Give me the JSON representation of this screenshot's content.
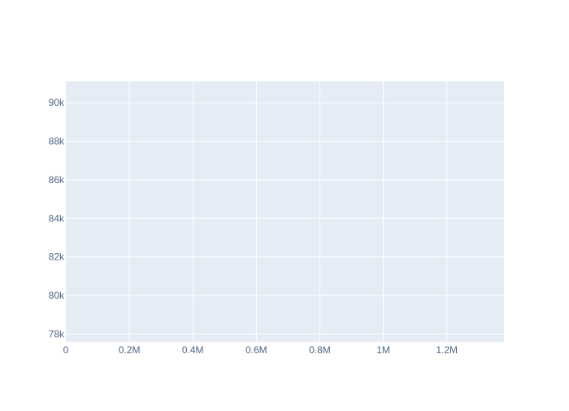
{
  "chart_data": {
    "type": "scatter",
    "title": "",
    "xlabel": "",
    "ylabel": "",
    "series": [],
    "x_ticks": [
      {
        "value": 0,
        "label": "0"
      },
      {
        "value": 200000,
        "label": "0.2M"
      },
      {
        "value": 400000,
        "label": "0.4M"
      },
      {
        "value": 600000,
        "label": "0.6M"
      },
      {
        "value": 800000,
        "label": "0.8M"
      },
      {
        "value": 1000000,
        "label": "1M"
      },
      {
        "value": 1200000,
        "label": "1.2M"
      }
    ],
    "y_ticks": [
      {
        "value": 78000,
        "label": "78k"
      },
      {
        "value": 80000,
        "label": "80k"
      },
      {
        "value": 82000,
        "label": "82k"
      },
      {
        "value": 84000,
        "label": "84k"
      },
      {
        "value": 86000,
        "label": "86k"
      },
      {
        "value": 88000,
        "label": "88k"
      },
      {
        "value": 90000,
        "label": "90k"
      }
    ],
    "xlim": [
      0,
      1380000
    ],
    "ylim": [
      77600,
      91100
    ],
    "grid": true,
    "colors": {
      "plot_background": "#e5ecf6",
      "grid": "#ffffff",
      "tick_label": "#506784"
    }
  }
}
